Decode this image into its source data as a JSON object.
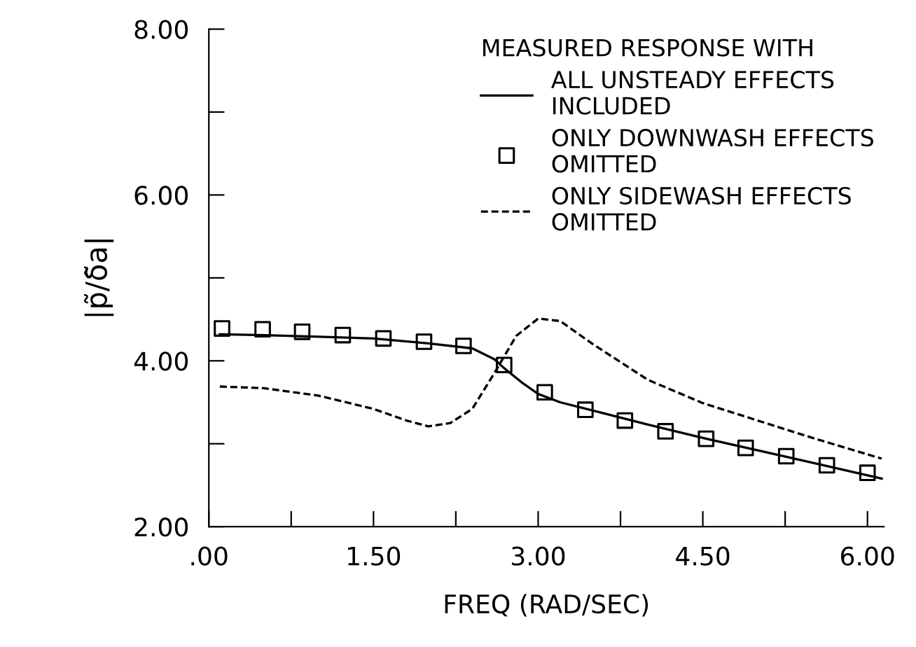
{
  "chart_data": {
    "type": "line",
    "xlabel": "FREQ (RAD/SEC)",
    "ylabel": "|p̃/δ̃a|",
    "legend_title": "MEASURED RESPONSE WITH",
    "xlim": [
      0,
      6.15
    ],
    "ylim": [
      2,
      8
    ],
    "xticks": [
      {
        "value": 0,
        "label": ".00"
      },
      {
        "value": 0.75,
        "label": null
      },
      {
        "value": 1.5,
        "label": "1.50"
      },
      {
        "value": 2.25,
        "label": null
      },
      {
        "value": 3,
        "label": "3.00"
      },
      {
        "value": 3.75,
        "label": null
      },
      {
        "value": 4.5,
        "label": "4.50"
      },
      {
        "value": 5.25,
        "label": null
      },
      {
        "value": 6,
        "label": "6.00"
      }
    ],
    "yticks": [
      {
        "value": 2,
        "label": "2.00"
      },
      {
        "value": 3,
        "label": null
      },
      {
        "value": 4,
        "label": "4.00"
      },
      {
        "value": 5,
        "label": null
      },
      {
        "value": 6,
        "label": "6.00"
      },
      {
        "value": 7,
        "label": null
      },
      {
        "value": 8,
        "label": "8.00"
      }
    ],
    "grid": false,
    "legend": "top right",
    "series": [
      {
        "name": "ALL UNSTEADY EFFECTS\nINCLUDED",
        "color": "#000000",
        "line_style": "solid",
        "marker": "none",
        "x": [
          0.1,
          0.5,
          1.0,
          1.5,
          2.0,
          2.4,
          2.6,
          2.7,
          2.85,
          3.0,
          3.2,
          3.5,
          4.0,
          4.5,
          5.0,
          5.5,
          6.13
        ],
        "values": [
          4.32,
          4.31,
          4.29,
          4.27,
          4.21,
          4.15,
          4.02,
          3.9,
          3.74,
          3.6,
          3.5,
          3.4,
          3.23,
          3.07,
          2.92,
          2.77,
          2.58
        ]
      },
      {
        "name": "ONLY DOWNWASH EFFECTS\nOMITTED",
        "type": "scatter",
        "color": "#000000",
        "marker": "square",
        "x": [
          0.12,
          0.49,
          0.85,
          1.22,
          1.59,
          1.96,
          2.32,
          2.69,
          3.06,
          3.43,
          3.79,
          4.16,
          4.53,
          4.89,
          5.26,
          5.63,
          6.0
        ],
        "values": [
          4.39,
          4.38,
          4.35,
          4.31,
          4.27,
          4.23,
          4.18,
          3.95,
          3.62,
          3.41,
          3.28,
          3.15,
          3.06,
          2.95,
          2.85,
          2.74,
          2.65
        ]
      },
      {
        "name": "ONLY SIDEWASH EFFECTS\nOMITTED",
        "color": "#000000",
        "line_style": "dashed",
        "marker": "none",
        "x": [
          0.1,
          0.5,
          1.0,
          1.5,
          1.8,
          2.0,
          2.2,
          2.4,
          2.6,
          2.8,
          3.0,
          3.2,
          3.5,
          4.0,
          4.5,
          5.0,
          5.5,
          6.13
        ],
        "values": [
          3.69,
          3.67,
          3.58,
          3.42,
          3.28,
          3.21,
          3.25,
          3.42,
          3.85,
          4.3,
          4.51,
          4.48,
          4.2,
          3.77,
          3.49,
          3.28,
          3.07,
          2.82
        ]
      }
    ]
  }
}
